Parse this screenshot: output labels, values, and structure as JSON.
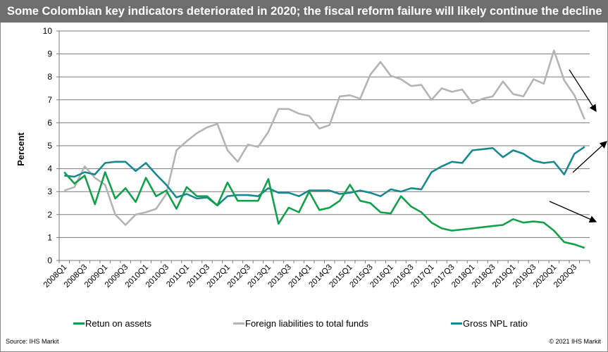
{
  "title": "Some Colombian key indicators deteriorated in 2020; the fiscal reform failure will likely continue the decline",
  "source": "Source: IHS Markit",
  "copyright": "© 2021 IHS Markit",
  "chart_data": {
    "type": "line",
    "title": "Some Colombian key indicators deteriorated in 2020; the fiscal reform failure will likely continue the decline",
    "xlabel": "",
    "ylabel": "Percent",
    "ylim": [
      0,
      10
    ],
    "yticks": [
      "0",
      "1",
      "2",
      "3",
      "4",
      "5",
      "6",
      "7",
      "8",
      "9",
      "10"
    ],
    "grid": true,
    "legend_position": "bottom",
    "x": [
      "2008Q1",
      "2008Q2",
      "2008Q3",
      "2008Q4",
      "2009Q1",
      "2009Q2",
      "2009Q3",
      "2009Q4",
      "2010Q1",
      "2010Q2",
      "2010Q3",
      "2010Q4",
      "2011Q1",
      "2011Q2",
      "2011Q3",
      "2011Q4",
      "2012Q1",
      "2012Q2",
      "2012Q3",
      "2012Q4",
      "2013Q1",
      "2013Q2",
      "2013Q3",
      "2013Q4",
      "2014Q1",
      "2014Q2",
      "2014Q3",
      "2014Q4",
      "2015Q1",
      "2015Q2",
      "2015Q3",
      "2015Q4",
      "2016Q1",
      "2016Q2",
      "2016Q3",
      "2016Q4",
      "2017Q1",
      "2017Q2",
      "2017Q3",
      "2017Q4",
      "2018Q1",
      "2018Q2",
      "2018Q3",
      "2018Q4",
      "2019Q1",
      "2019Q2",
      "2019Q3",
      "2019Q4",
      "2020Q1",
      "2020Q2",
      "2020Q3",
      "2020Q4"
    ],
    "xtick_labels": [
      "2008Q1",
      "2008Q3",
      "2009Q1",
      "2009Q3",
      "2010Q1",
      "2010Q3",
      "2011Q1",
      "2011Q3",
      "2012Q1",
      "2012Q3",
      "2013Q1",
      "2013Q3",
      "2014Q1",
      "2014Q3",
      "2015Q1",
      "2015Q3",
      "2016Q1",
      "2016Q3",
      "2017Q1",
      "2017Q3",
      "2018Q1",
      "2018Q3",
      "2019Q1",
      "2019Q3",
      "2020Q1",
      "2020Q3"
    ],
    "series": [
      {
        "name": "Retun on assets",
        "color": "#12a14a",
        "values": [
          3.85,
          3.35,
          3.7,
          2.45,
          3.85,
          2.7,
          3.15,
          2.55,
          3.6,
          2.8,
          3.05,
          2.25,
          3.2,
          2.8,
          2.8,
          2.4,
          3.4,
          2.6,
          2.6,
          2.6,
          3.55,
          1.6,
          2.3,
          2.1,
          3.0,
          2.2,
          2.3,
          2.6,
          3.3,
          2.6,
          2.5,
          2.1,
          2.05,
          2.8,
          2.35,
          2.1,
          1.65,
          1.4,
          1.3,
          1.35,
          1.4,
          1.45,
          1.5,
          1.55,
          1.8,
          1.65,
          1.7,
          1.65,
          1.3,
          0.8,
          0.7,
          0.55
        ]
      },
      {
        "name": "Foreign liabilities to total funds",
        "color": "#b4b4b4",
        "values": [
          3.05,
          3.2,
          4.1,
          3.6,
          3.3,
          2.0,
          1.55,
          2.0,
          2.1,
          2.25,
          2.9,
          4.8,
          5.2,
          5.55,
          5.8,
          5.95,
          4.8,
          4.3,
          5.05,
          4.95,
          5.6,
          6.6,
          6.6,
          6.4,
          6.3,
          5.75,
          5.9,
          7.15,
          7.2,
          7.05,
          8.1,
          8.65,
          8.05,
          7.9,
          7.6,
          7.65,
          7.0,
          7.5,
          7.35,
          7.45,
          6.85,
          7.05,
          7.15,
          7.8,
          7.25,
          7.15,
          7.9,
          7.7,
          9.15,
          7.85,
          7.2,
          6.15
        ]
      },
      {
        "name": "Gross NPL ratio",
        "color": "#17898f",
        "values": [
          3.7,
          3.65,
          3.85,
          3.75,
          4.25,
          4.3,
          4.3,
          3.9,
          4.25,
          3.75,
          3.3,
          2.75,
          2.9,
          2.7,
          2.75,
          2.4,
          2.8,
          2.85,
          2.85,
          2.8,
          3.15,
          2.95,
          2.95,
          2.8,
          3.05,
          3.05,
          3.05,
          2.9,
          2.95,
          3.05,
          2.95,
          2.8,
          3.1,
          3.0,
          3.15,
          3.1,
          3.85,
          4.1,
          4.3,
          4.25,
          4.8,
          4.85,
          4.9,
          4.5,
          4.8,
          4.65,
          4.35,
          4.25,
          4.3,
          3.75,
          4.65,
          4.95
        ]
      }
    ],
    "annotations": [
      {
        "type": "arrow",
        "meaning": "foreign liabilities decline",
        "direction": "down-right"
      },
      {
        "type": "arrow",
        "meaning": "NPL ratio rise",
        "direction": "up-right"
      },
      {
        "type": "arrow",
        "meaning": "ROA decline",
        "direction": "down-right"
      }
    ]
  }
}
